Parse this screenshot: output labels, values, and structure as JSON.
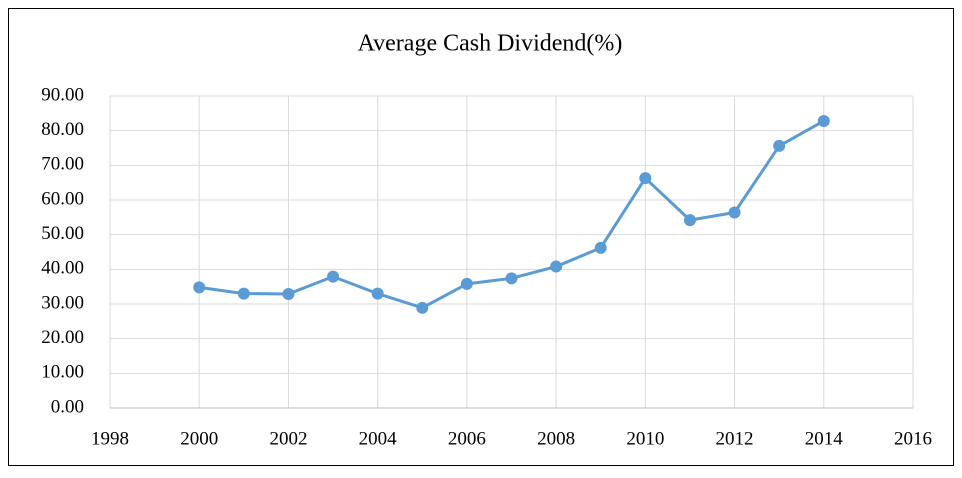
{
  "chart_data": {
    "type": "line",
    "title": "Average Cash Dividend(%)",
    "x": [
      2000,
      2001,
      2002,
      2003,
      2004,
      2005,
      2006,
      2007,
      2008,
      2009,
      2010,
      2011,
      2012,
      2013,
      2014
    ],
    "series": [
      {
        "name": "Average Cash Dividend(%)",
        "color": "#5b9bd5",
        "values": [
          34.8,
          33.0,
          32.9,
          37.9,
          33.0,
          28.9,
          35.8,
          37.4,
          40.8,
          46.2,
          66.3,
          54.2,
          56.4,
          75.6,
          82.8
        ]
      }
    ],
    "xlim": [
      1998,
      2016
    ],
    "xticks": [
      1998,
      2000,
      2002,
      2004,
      2006,
      2008,
      2010,
      2012,
      2014,
      2016
    ],
    "ylim": [
      0,
      90
    ],
    "yticks": [
      {
        "value": 0,
        "label": "0.00"
      },
      {
        "value": 10,
        "label": "10.00"
      },
      {
        "value": 20,
        "label": "20.00"
      },
      {
        "value": 30,
        "label": "30.00"
      },
      {
        "value": 40,
        "label": "40.00"
      },
      {
        "value": 50,
        "label": "50.00"
      },
      {
        "value": 60,
        "label": "60.00"
      },
      {
        "value": 70,
        "label": "70.00"
      },
      {
        "value": 80,
        "label": "80.00"
      },
      {
        "value": 90,
        "label": "90.00"
      }
    ],
    "grid": true
  }
}
